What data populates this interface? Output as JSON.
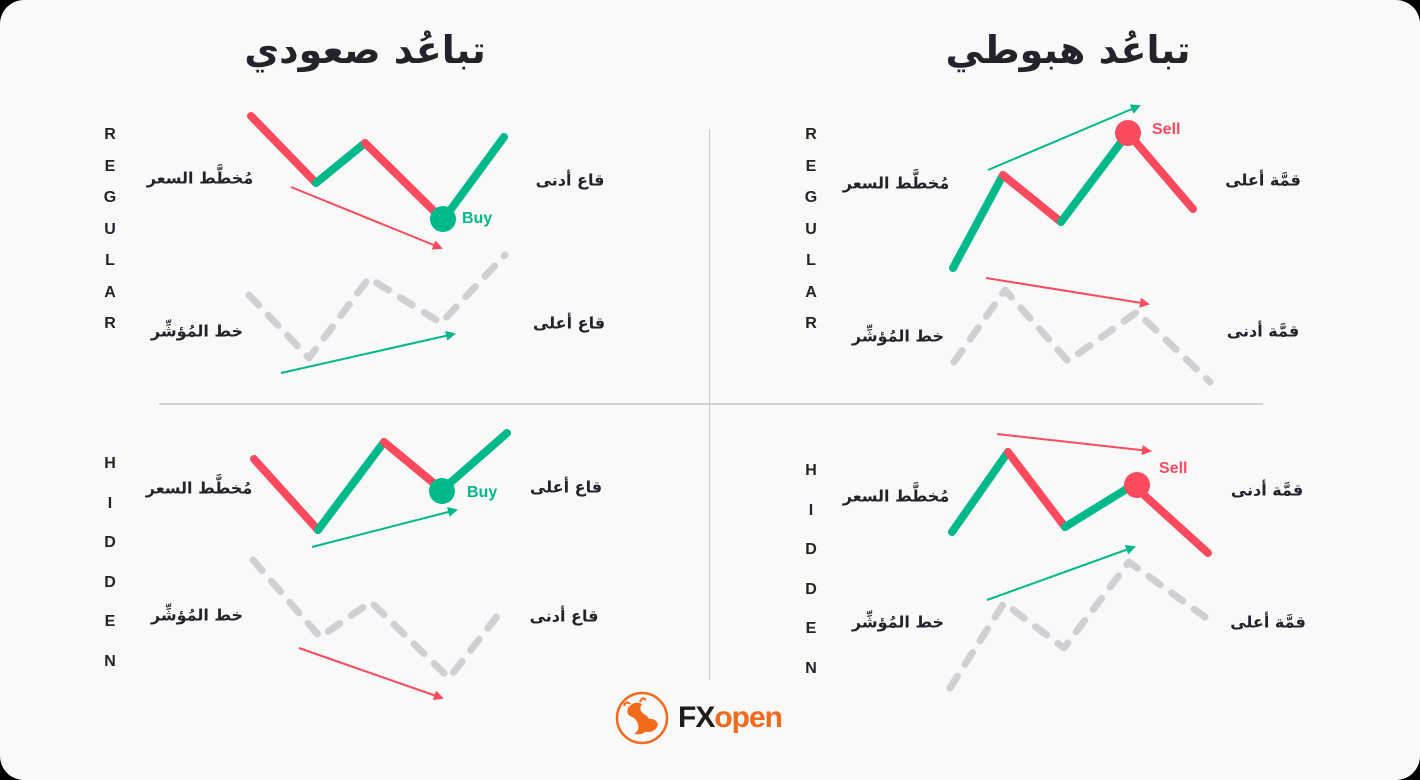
{
  "colors": {
    "background": "#f9f9f9",
    "text": "#23232b",
    "bull_green": "#00b98a",
    "bear_red": "#fb4a5e",
    "indicator_gray": "#d0d0d4",
    "divider": "#d2d2d6",
    "brand_orange": "#f26a1b"
  },
  "columns": {
    "bullish": {
      "title": "تباعُد صعودي"
    },
    "bearish": {
      "title": "تباعُد هبوطي"
    }
  },
  "row_labels": {
    "regular": [
      "R",
      "E",
      "G",
      "U",
      "L",
      "A",
      "R"
    ],
    "hidden": [
      "H",
      "I",
      "D",
      "D",
      "E",
      "N"
    ]
  },
  "quadrants": {
    "bullish_regular": {
      "price_label": "مُخطَّط السعر",
      "indicator_label": "خط المُؤشِّر",
      "price_state": "قاع أدنى",
      "indicator_state": "قاع أعلى",
      "signal": "Buy"
    },
    "bearish_regular": {
      "price_label": "مُخطَّط السعر",
      "indicator_label": "خط المُؤشِّر",
      "price_state": "قمَّة أعلى",
      "indicator_state": "قمَّة أدنى",
      "signal": "Sell"
    },
    "bullish_hidden": {
      "price_label": "مُخطَّط السعر",
      "indicator_label": "خط المُؤشِّر",
      "price_state": "قاع أعلى",
      "indicator_state": "قاع أدنى",
      "signal": "Buy"
    },
    "bearish_hidden": {
      "price_label": "مُخطَّط السعر",
      "indicator_label": "خط المُؤشِّر",
      "price_state": "قمَّة أدنى",
      "indicator_state": "قمَّة أعلى",
      "signal": "Sell"
    }
  },
  "brand": {
    "fx": "FX",
    "open": "open"
  }
}
